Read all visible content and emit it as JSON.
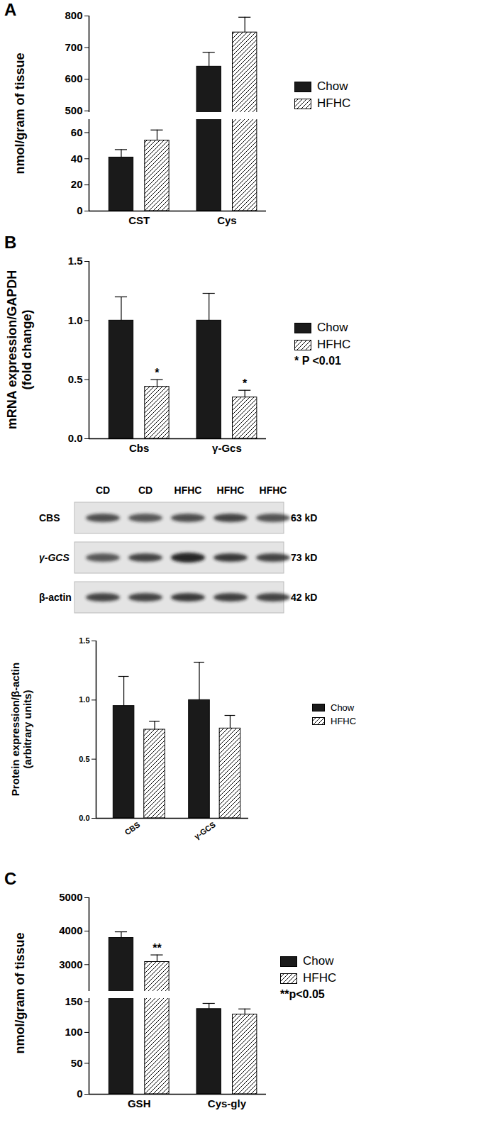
{
  "chart_data": [
    {
      "panel": "A",
      "type": "bar",
      "ylabel": "nmol/gram of tissue",
      "categories": [
        "CST",
        "Cys"
      ],
      "series": [
        {
          "name": "Chow",
          "color": "#1a1a1a",
          "values": [
            41,
            640
          ],
          "errors": [
            6,
            45
          ]
        },
        {
          "name": "HFHC",
          "color": "#ffffff",
          "values": [
            54,
            748
          ],
          "errors": [
            8,
            48
          ]
        }
      ],
      "ylim": [
        0,
        800
      ],
      "y_break": [
        70,
        495
      ],
      "yticks": [
        0,
        20,
        40,
        60,
        500,
        600,
        700,
        800
      ],
      "legend": "right"
    },
    {
      "panel": "B",
      "type": "bar",
      "ylabel": "mRNA expression/GAPDH\n(fold change)",
      "categories": [
        "Cbs",
        "γ-Gcs"
      ],
      "series": [
        {
          "name": "Chow",
          "color": "#1a1a1a",
          "values": [
            1.0,
            1.0
          ],
          "errors": [
            0.2,
            0.23
          ]
        },
        {
          "name": "HFHC",
          "color": "#ffffff",
          "values": [
            0.44,
            0.35
          ],
          "errors": [
            0.06,
            0.06
          ],
          "annotations": [
            "*",
            "*"
          ]
        }
      ],
      "ylim": [
        0,
        1.5
      ],
      "yticks": [
        {
          "value": 0,
          "label": "0.0"
        },
        0.5,
        {
          "value": 1,
          "label": "1.0"
        },
        1.5
      ],
      "note": "* P <0.01",
      "legend": "right"
    },
    {
      "type": "bar",
      "ylabel": "Protein expression/β-actin\n(arbitrary units)",
      "categories": [
        "CBS",
        "γ-GCS"
      ],
      "series": [
        {
          "name": "Chow",
          "color": "#1a1a1a",
          "values": [
            0.95,
            1.0
          ],
          "errors": [
            0.25,
            0.32
          ]
        },
        {
          "name": "HFHC",
          "color": "#ffffff",
          "values": [
            0.75,
            0.76
          ],
          "errors": [
            0.07,
            0.11
          ]
        }
      ],
      "ylim": [
        0,
        1.5
      ],
      "yticks": [
        {
          "value": 0,
          "label": "0.0"
        },
        0.5,
        {
          "value": 1,
          "label": "1.0"
        },
        1.5
      ],
      "legend": "right"
    },
    {
      "panel": "C",
      "type": "bar",
      "ylabel": "nmol/gram of tissue",
      "categories": [
        "GSH",
        "Cys-gly"
      ],
      "series": [
        {
          "name": "Chow",
          "color": "#1a1a1a",
          "values": [
            3800,
            138
          ],
          "errors": [
            180,
            9
          ]
        },
        {
          "name": "HFHC",
          "color": "#ffffff",
          "values": [
            3080,
            129
          ],
          "errors": [
            210,
            9
          ],
          "annotations": [
            "**",
            null
          ]
        }
      ],
      "ylim": [
        0,
        5000
      ],
      "y_break": [
        155,
        2200
      ],
      "yticks": [
        0,
        50,
        100,
        150,
        3000,
        4000,
        5000
      ],
      "note": "**p<0.05",
      "legend": "right"
    }
  ],
  "blot": {
    "lanes": [
      "CD",
      "CD",
      "HFHC",
      "HFHC",
      "HFHC"
    ],
    "rows": [
      {
        "label": "CBS",
        "size": "63 kD"
      },
      {
        "label": "γ-GCS",
        "size": "73 kD"
      },
      {
        "label": "β-actin",
        "size": "42 kD"
      }
    ]
  }
}
